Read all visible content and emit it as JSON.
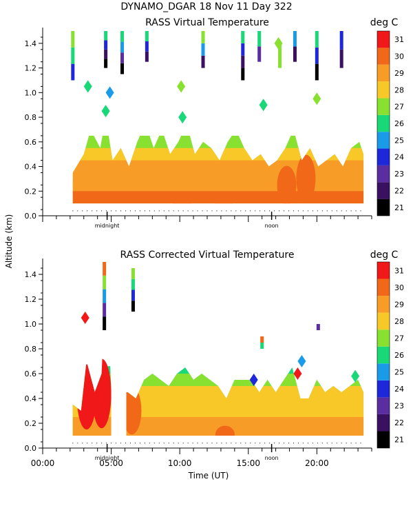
{
  "header": {
    "title": "DYNAMO_DGAR  18 Nov 11 Day 322"
  },
  "shared": {
    "ylabel": "Altitude (km)",
    "xlabel": "Time (UT)",
    "xticks": [
      0,
      5,
      10,
      15,
      20
    ],
    "xtick_labels": [
      "00:00",
      "05:00",
      "10:00",
      "15:00",
      "20:00"
    ],
    "xlim": [
      0,
      24
    ],
    "ylim": [
      0,
      1.5
    ],
    "yticks": [
      0.0,
      0.2,
      0.4,
      0.6,
      0.8,
      1.0,
      1.2,
      1.4
    ],
    "ytick_labels": [
      "0.0",
      "0.2",
      "0.4",
      "0.6",
      "0.8",
      "1.0",
      "1.2",
      "1.4"
    ],
    "midnight_label": "midnight",
    "midnight_hour": 4.7,
    "noon_label": "noon",
    "noon_hour": 16.7,
    "colorbar": {
      "units": "deg C",
      "levels": [
        21,
        22,
        23,
        24,
        25,
        26,
        27,
        28,
        29,
        30,
        31
      ],
      "level_labels": [
        "21",
        "22",
        "23",
        "24",
        "25",
        "26",
        "27",
        "28",
        "29",
        "30",
        "31"
      ],
      "colors": [
        "#000000",
        "#3a1060",
        "#5a2da0",
        "#1e28d8",
        "#1a9be8",
        "#18d878",
        "#88e030",
        "#f8c828",
        "#f89c28",
        "#f06818",
        "#f01818"
      ]
    }
  },
  "chart_data": [
    {
      "type": "heatmap",
      "title": "RASS Virtual Temperature",
      "units": "deg C",
      "xlabel": "",
      "ylabel": "Altitude (km)",
      "xlim": [
        0,
        24
      ],
      "ylim": [
        0,
        1.5
      ],
      "time_range_hours": [
        2.1,
        23.4
      ],
      "valid_profile": [
        [
          2.2,
          0.35
        ],
        [
          3.0,
          0.5
        ],
        [
          3.5,
          0.7
        ],
        [
          4.2,
          0.55
        ],
        [
          4.6,
          0.8
        ],
        [
          5.1,
          0.45
        ],
        [
          5.7,
          0.55
        ],
        [
          6.3,
          0.4
        ],
        [
          6.9,
          0.6
        ],
        [
          7.5,
          0.75
        ],
        [
          8.1,
          0.55
        ],
        [
          8.7,
          0.7
        ],
        [
          9.3,
          0.5
        ],
        [
          9.9,
          0.6
        ],
        [
          10.5,
          0.75
        ],
        [
          11.1,
          0.5
        ],
        [
          11.7,
          0.6
        ],
        [
          12.3,
          0.55
        ],
        [
          12.9,
          0.45
        ],
        [
          13.5,
          0.6
        ],
        [
          14.1,
          0.7
        ],
        [
          14.7,
          0.55
        ],
        [
          15.3,
          0.45
        ],
        [
          15.9,
          0.5
        ],
        [
          16.5,
          0.4
        ],
        [
          17.1,
          0.45
        ],
        [
          17.7,
          0.55
        ],
        [
          18.3,
          0.7
        ],
        [
          18.9,
          0.45
        ],
        [
          19.5,
          0.55
        ],
        [
          20.1,
          0.4
        ],
        [
          20.7,
          0.45
        ],
        [
          21.3,
          0.5
        ],
        [
          21.9,
          0.4
        ],
        [
          22.5,
          0.55
        ],
        [
          23.1,
          0.6
        ],
        [
          23.4,
          0.5
        ]
      ],
      "layers": [
        {
          "top": 0.2,
          "value": 30
        },
        {
          "top": 0.3,
          "value": 29.5
        },
        {
          "top": 0.45,
          "value": 29
        },
        {
          "top": 0.55,
          "value": 28
        },
        {
          "top": 0.65,
          "value": 27
        }
      ],
      "warm_patches": [
        [
          10.2,
          0.18,
          30
        ],
        [
          13.2,
          0.15,
          30
        ],
        [
          17.8,
          0.45,
          30
        ],
        [
          19.2,
          0.55,
          30
        ]
      ],
      "upper_columns": [
        {
          "x": 2.2,
          "bottom": 1.1,
          "top": 1.5,
          "values": [
            24,
            26,
            27
          ]
        },
        {
          "x": 4.6,
          "bottom": 1.2,
          "top": 1.5,
          "values": [
            21,
            22,
            24,
            26
          ]
        },
        {
          "x": 5.8,
          "bottom": 1.15,
          "top": 1.5,
          "values": [
            21,
            23,
            25,
            26
          ]
        },
        {
          "x": 7.6,
          "bottom": 1.25,
          "top": 1.5,
          "values": [
            22,
            24,
            26
          ]
        },
        {
          "x": 11.7,
          "bottom": 1.2,
          "top": 1.5,
          "values": [
            22,
            25,
            27
          ]
        },
        {
          "x": 14.6,
          "bottom": 1.1,
          "top": 1.5,
          "values": [
            21,
            22,
            24,
            26
          ]
        },
        {
          "x": 15.8,
          "bottom": 1.25,
          "top": 1.5,
          "values": [
            23,
            26
          ]
        },
        {
          "x": 17.3,
          "bottom": 1.2,
          "top": 1.4,
          "values": [
            27
          ]
        },
        {
          "x": 18.4,
          "bottom": 1.25,
          "top": 1.5,
          "values": [
            22,
            25
          ]
        },
        {
          "x": 20.0,
          "bottom": 1.1,
          "top": 1.5,
          "values": [
            21,
            24,
            26
          ]
        },
        {
          "x": 21.8,
          "bottom": 1.2,
          "top": 1.5,
          "values": [
            22,
            24
          ]
        }
      ],
      "mid_patches": [
        {
          "x": 3.3,
          "y": 1.05,
          "value": 26
        },
        {
          "x": 4.6,
          "y": 0.85,
          "value": 26
        },
        {
          "x": 4.9,
          "y": 1.0,
          "value": 25
        },
        {
          "x": 10.1,
          "y": 1.05,
          "value": 27
        },
        {
          "x": 10.2,
          "y": 0.8,
          "value": 26
        },
        {
          "x": 16.1,
          "y": 0.9,
          "value": 26
        },
        {
          "x": 17.2,
          "y": 1.4,
          "value": 27
        },
        {
          "x": 20.0,
          "y": 0.95,
          "value": 27
        }
      ]
    },
    {
      "type": "heatmap",
      "title": "RASS Corrected Virtual Temperature",
      "units": "deg C",
      "xlabel": "Time (UT)",
      "ylabel": "Altitude (km)",
      "xlim": [
        0,
        24
      ],
      "ylim": [
        0,
        1.5
      ],
      "time_range_hours": [
        2.1,
        23.4
      ],
      "gap_hours": [
        5.0,
        6.1
      ],
      "valid_profile": [
        [
          2.2,
          0.35
        ],
        [
          2.8,
          0.3
        ],
        [
          3.2,
          0.7
        ],
        [
          3.8,
          0.45
        ],
        [
          4.3,
          0.6
        ],
        [
          4.6,
          1.4
        ],
        [
          4.8,
          1.05
        ],
        [
          5.0,
          0.45
        ],
        [
          6.2,
          0.45
        ],
        [
          6.8,
          0.4
        ],
        [
          7.4,
          0.55
        ],
        [
          8.0,
          0.6
        ],
        [
          8.6,
          0.55
        ],
        [
          9.2,
          0.5
        ],
        [
          9.8,
          0.6
        ],
        [
          10.4,
          0.65
        ],
        [
          11.0,
          0.55
        ],
        [
          11.6,
          0.6
        ],
        [
          12.2,
          0.55
        ],
        [
          12.8,
          0.5
        ],
        [
          13.4,
          0.4
        ],
        [
          14.0,
          0.55
        ],
        [
          14.6,
          0.55
        ],
        [
          15.2,
          0.55
        ],
        [
          15.8,
          0.45
        ],
        [
          16.4,
          0.55
        ],
        [
          17.0,
          0.45
        ],
        [
          17.6,
          0.55
        ],
        [
          18.2,
          0.65
        ],
        [
          18.8,
          0.4
        ],
        [
          19.4,
          0.4
        ],
        [
          20.0,
          0.55
        ],
        [
          20.6,
          0.45
        ],
        [
          21.2,
          0.5
        ],
        [
          21.8,
          0.45
        ],
        [
          22.4,
          0.5
        ],
        [
          23.0,
          0.55
        ],
        [
          23.4,
          0.45
        ]
      ],
      "layers": [
        {
          "top": 0.25,
          "value": 29
        },
        {
          "top": 0.4,
          "value": 28.5
        },
        {
          "top": 0.5,
          "value": 28
        },
        {
          "top": 0.6,
          "value": 27
        },
        {
          "top": 0.66,
          "value": 26
        }
      ],
      "warm_patches": [
        [
          3.2,
          0.75,
          31
        ],
        [
          4.3,
          0.8,
          31
        ],
        [
          6.5,
          0.55,
          30
        ],
        [
          13.3,
          0.2,
          30
        ]
      ],
      "upper_columns": [
        {
          "x": 4.5,
          "bottom": 0.95,
          "top": 1.5,
          "values": [
            21,
            23,
            25,
            27,
            30
          ]
        },
        {
          "x": 6.6,
          "bottom": 1.1,
          "top": 1.45,
          "values": [
            21,
            24,
            26,
            27
          ]
        },
        {
          "x": 16.0,
          "bottom": 0.8,
          "top": 0.9,
          "values": [
            26,
            30
          ]
        },
        {
          "x": 20.1,
          "bottom": 0.95,
          "top": 1.0,
          "values": [
            23
          ]
        }
      ],
      "mid_patches": [
        {
          "x": 3.1,
          "y": 1.05,
          "value": 31
        },
        {
          "x": 18.6,
          "y": 0.6,
          "value": 31
        },
        {
          "x": 18.9,
          "y": 0.7,
          "value": 25
        },
        {
          "x": 15.4,
          "y": 0.55,
          "value": 24
        },
        {
          "x": 22.8,
          "y": 0.58,
          "value": 26
        }
      ]
    }
  ]
}
